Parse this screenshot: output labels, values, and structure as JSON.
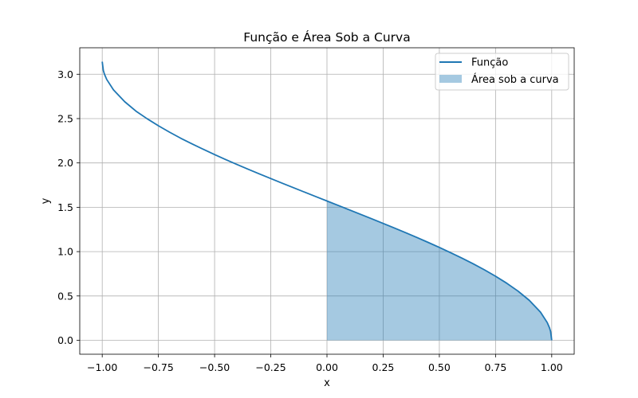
{
  "chart_data": {
    "type": "line",
    "title": "Função e Área Sob a Curva",
    "xlabel": "x",
    "ylabel": "y",
    "xlim": [
      -1.1,
      1.1
    ],
    "ylim": [
      -0.15714,
      3.29874
    ],
    "x_ticks": [
      -1.0,
      -0.75,
      -0.5,
      -0.25,
      0.0,
      0.25,
      0.5,
      0.75,
      1.0
    ],
    "x_tick_labels": [
      "−1.00",
      "−0.75",
      "−0.50",
      "−0.25",
      "0.00",
      "0.25",
      "0.50",
      "0.75",
      "1.00"
    ],
    "y_ticks": [
      0.0,
      0.5,
      1.0,
      1.5,
      2.0,
      2.5,
      3.0
    ],
    "y_tick_labels": [
      "0.0",
      "0.5",
      "1.0",
      "1.5",
      "2.0",
      "2.5",
      "3.0"
    ],
    "grid": true,
    "legend_position": "top-right",
    "series": [
      {
        "name": "Função",
        "kind": "line",
        "color": "#1f77b4",
        "x": [
          -1.0,
          -0.995,
          -0.99,
          -0.98,
          -0.95,
          -0.9,
          -0.85,
          -0.8,
          -0.75,
          -0.7,
          -0.65,
          -0.6,
          -0.55,
          -0.5,
          -0.45,
          -0.4,
          -0.35,
          -0.3,
          -0.25,
          -0.2,
          -0.15,
          -0.1,
          -0.05,
          0.0,
          0.05,
          0.1,
          0.15,
          0.2,
          0.25,
          0.3,
          0.35,
          0.4,
          0.45,
          0.5,
          0.55,
          0.6,
          0.65,
          0.7,
          0.75,
          0.8,
          0.85,
          0.9,
          0.95,
          0.98,
          0.99,
          0.995,
          1.0
        ],
        "y": [
          3.1416,
          3.0414,
          3.0,
          2.9413,
          2.824,
          2.6906,
          2.5843,
          2.4981,
          2.4189,
          2.3462,
          2.2776,
          2.2143,
          2.1532,
          2.0944,
          2.0375,
          1.9823,
          1.9284,
          1.8755,
          1.8235,
          1.7722,
          1.7214,
          1.671,
          1.6208,
          1.5708,
          1.5208,
          1.4706,
          1.4202,
          1.3694,
          1.3181,
          1.2661,
          1.2132,
          1.1593,
          1.104,
          1.0472,
          0.9884,
          0.9273,
          0.8632,
          0.7954,
          0.7227,
          0.6435,
          0.5548,
          0.451,
          0.3176,
          0.2003,
          0.1415,
          0.1,
          0.0
        ]
      },
      {
        "name": "Área sob a curva",
        "kind": "area",
        "color": "#1f77b4",
        "opacity": 0.4,
        "x_range": [
          0.0,
          1.0
        ]
      }
    ]
  }
}
